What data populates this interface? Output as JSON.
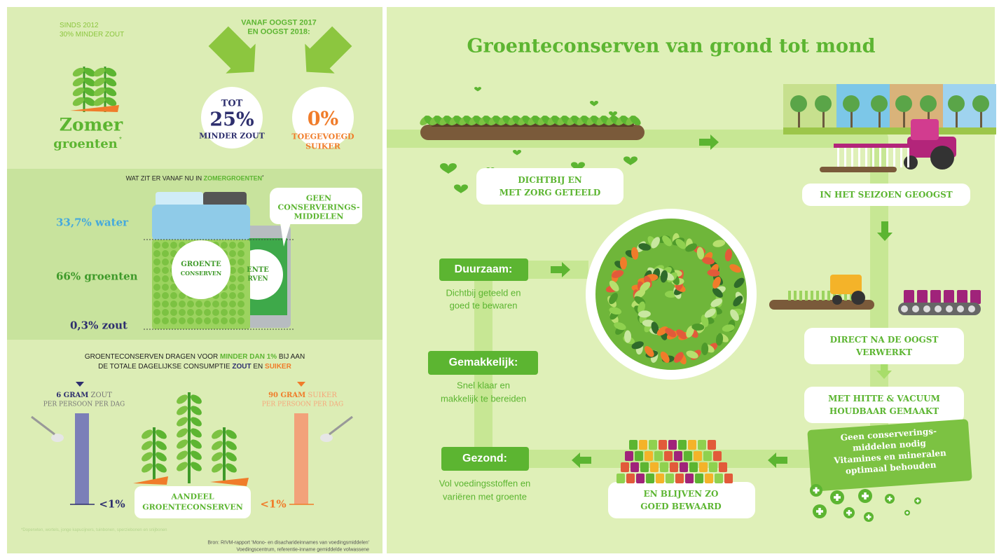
{
  "left": {
    "top": {
      "since": "SINDS 2012",
      "less_salt": "30% MINDER ZOUT",
      "heading": [
        "VANAF OOGST 2017",
        "EN OOGST 2018:"
      ],
      "logo": [
        "Zomer",
        "groenten"
      ],
      "logo_mark": "*",
      "salt": {
        "pre": "TOT",
        "value": "25%",
        "text": "MINDER ZOUT"
      },
      "sugar": {
        "value": "0%",
        "text": [
          "TOEGEVOEGD",
          "SUIKER"
        ]
      }
    },
    "middle": {
      "title": "WAT ZIT ER VANAF NU IN ",
      "title_highlight": "ZOMERGROENTEN",
      "title_mark": "*",
      "bubble": [
        "GEEN",
        "CONSERVERINGS-",
        "MIDDELEN"
      ],
      "water": "33,7% water",
      "vegetables": "66% groenten",
      "salt": "0,3% zout",
      "jar_label": [
        "GROENTE",
        "CONSERVEN"
      ],
      "can_label": [
        "ENTE",
        "RVEN"
      ]
    },
    "bottom": {
      "heading1": [
        "GROENTECONSERVEN DRAGEN VOOR ",
        "MINDER DAN 1%",
        " BIJ AAN"
      ],
      "heading2": [
        "DE TOTALE DAGELIJKSE CONSUMPTIE ",
        "ZOUT",
        " EN ",
        "SUIKER"
      ],
      "salt": {
        "amount": "6 GRAM",
        "unit": " ZOUT",
        "per": "PER PERSOON PER DAG",
        "share": "<1%"
      },
      "sugar": {
        "amount": "90 GRAM",
        "unit": " SUIKER",
        "per": "PER PERSOON PER DAG",
        "share": "<1%"
      },
      "share_label": [
        "AANDEEL",
        "GROENTECONSERVEN"
      ],
      "footnote": "*Doperwten, wortels, jonge kapucijners, tuinbonen, sperziebonen en snijbonen",
      "source": [
        "Bron: RIVM-rapport 'Mono- en disacharideinnames van voedingsmiddelen'",
        "Voedingscentrum, referentie-inname gemiddelde volwassene"
      ]
    }
  },
  "right": {
    "title": "Groenteconserven van grond tot mond",
    "steps": {
      "grown": [
        "DICHTBIJ EN",
        "MET ZORG GETEELD"
      ],
      "harvested": [
        "IN HET SEIZOEN GEOOGST"
      ],
      "processed": [
        "DIRECT NA DE OOGST",
        "VERWERKT"
      ],
      "preserved": [
        "MET HITTE & VACUUM",
        "HOUDBAAR GEMAAKT"
      ],
      "note": [
        "Geen conserverings-",
        "middelen nodig",
        "Vitamines en mineralen",
        "optimaal behouden"
      ],
      "stored": [
        "EN BLIJVEN ZO",
        "GOED BEWAARD"
      ]
    },
    "benefits": [
      {
        "title": "Duurzaam:",
        "text": [
          "Dichtbij geteeld en",
          "goed te bewaren"
        ]
      },
      {
        "title": "Gemakkelijk:",
        "text": [
          "Snel klaar en",
          "makkelijk te bereiden"
        ]
      },
      {
        "title": "Gezond:",
        "text": [
          "Vol voedingsstoffen en",
          "variëren met groente"
        ]
      }
    ]
  }
}
